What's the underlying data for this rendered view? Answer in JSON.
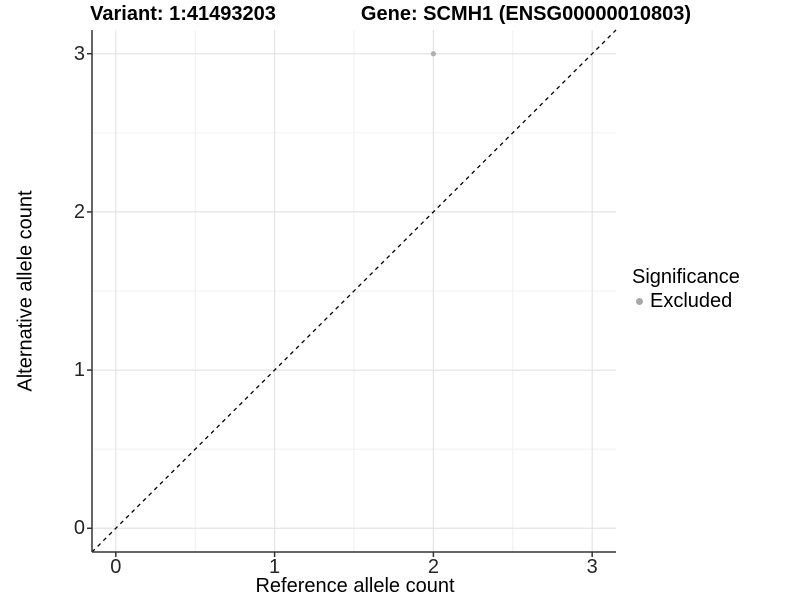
{
  "chart_data": {
    "type": "scatter",
    "title_left": "Variant: 1:41493203",
    "title_right": "Gene: SCMH1 (ENSG00000010803)",
    "xlabel": "Reference allele count",
    "ylabel": "Alternative allele count",
    "xlim": [
      -0.15,
      3.15
    ],
    "ylim": [
      -0.15,
      3.15
    ],
    "x_ticks": [
      0,
      1,
      2,
      3
    ],
    "y_ticks": [
      0,
      1,
      2,
      3
    ],
    "x_minor_ticks": [
      0.5,
      1.5,
      2.5
    ],
    "y_minor_ticks": [
      0.5,
      1.5,
      2.5
    ],
    "grid": true,
    "identity_line": {
      "from": [
        -0.15,
        -0.15
      ],
      "to": [
        3.15,
        3.15
      ],
      "style": "dashed",
      "color": "#000000"
    },
    "series": [
      {
        "name": "Excluded",
        "color": "#b0b0b0",
        "points": [
          {
            "x": 2,
            "y": 3
          }
        ]
      }
    ],
    "legend": {
      "title": "Significance",
      "position": "right",
      "entries": [
        {
          "label": "Excluded",
          "color": "#a8a8a8"
        }
      ]
    },
    "colors": {
      "grid_major": "#e4e4e4",
      "grid_minor": "#f0f0f0",
      "axis_line": "#333333",
      "tick_mark": "#333333",
      "background": "#ffffff"
    }
  }
}
